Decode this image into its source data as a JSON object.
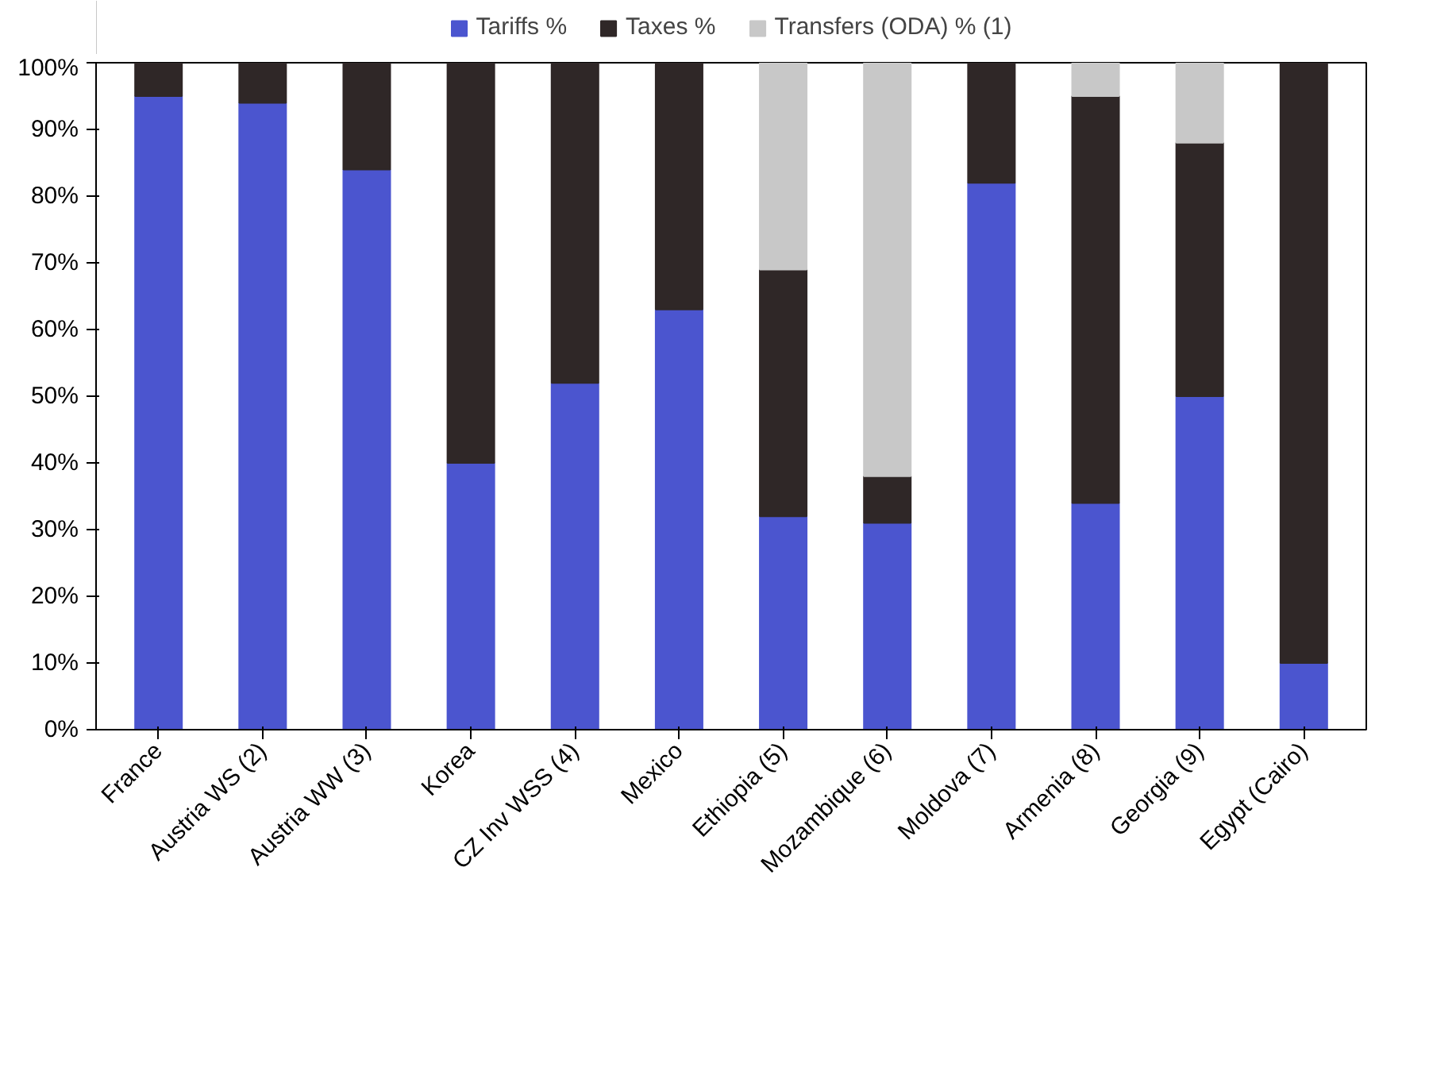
{
  "chart_data": {
    "type": "bar",
    "stacked": true,
    "legend": "top",
    "grid": false,
    "categories": [
      "France",
      "Austria WS (2)",
      "Austria WW (3)",
      "Korea",
      "CZ Inv WSS (4)",
      "Mexico",
      "Ethiopia (5)",
      "Mozambique (6)",
      "Moldova (7)",
      "Armenia (8)",
      "Georgia (9)",
      "Egypt (Cairo)"
    ],
    "series": [
      {
        "name": "Tariffs %",
        "color": "#4b55cf",
        "values": [
          95,
          94,
          84,
          40,
          52,
          63,
          32,
          31,
          82,
          34,
          50,
          10
        ]
      },
      {
        "name": "Taxes %",
        "color": "#2f2727",
        "values": [
          5,
          6,
          16,
          60,
          48,
          37,
          37,
          7,
          18,
          61,
          38,
          90
        ]
      },
      {
        "name": "Transfers (ODA) % (1)",
        "color": "#c8c8c8",
        "values": [
          null,
          null,
          null,
          null,
          null,
          null,
          31,
          62,
          null,
          5,
          12,
          null
        ]
      }
    ],
    "ylim": [
      0,
      100
    ],
    "yticks": [
      {
        "value": 0,
        "label": "0%"
      },
      {
        "value": 10,
        "label": "10%"
      },
      {
        "value": 20,
        "label": "20%"
      },
      {
        "value": 30,
        "label": "30%"
      },
      {
        "value": 40,
        "label": "40%"
      },
      {
        "value": 50,
        "label": "50%"
      },
      {
        "value": 60,
        "label": "60%"
      },
      {
        "value": 70,
        "label": "70%"
      },
      {
        "value": 80,
        "label": "80%"
      },
      {
        "value": 90,
        "label": "90%"
      },
      {
        "value": 100,
        "label": "100%"
      }
    ]
  }
}
